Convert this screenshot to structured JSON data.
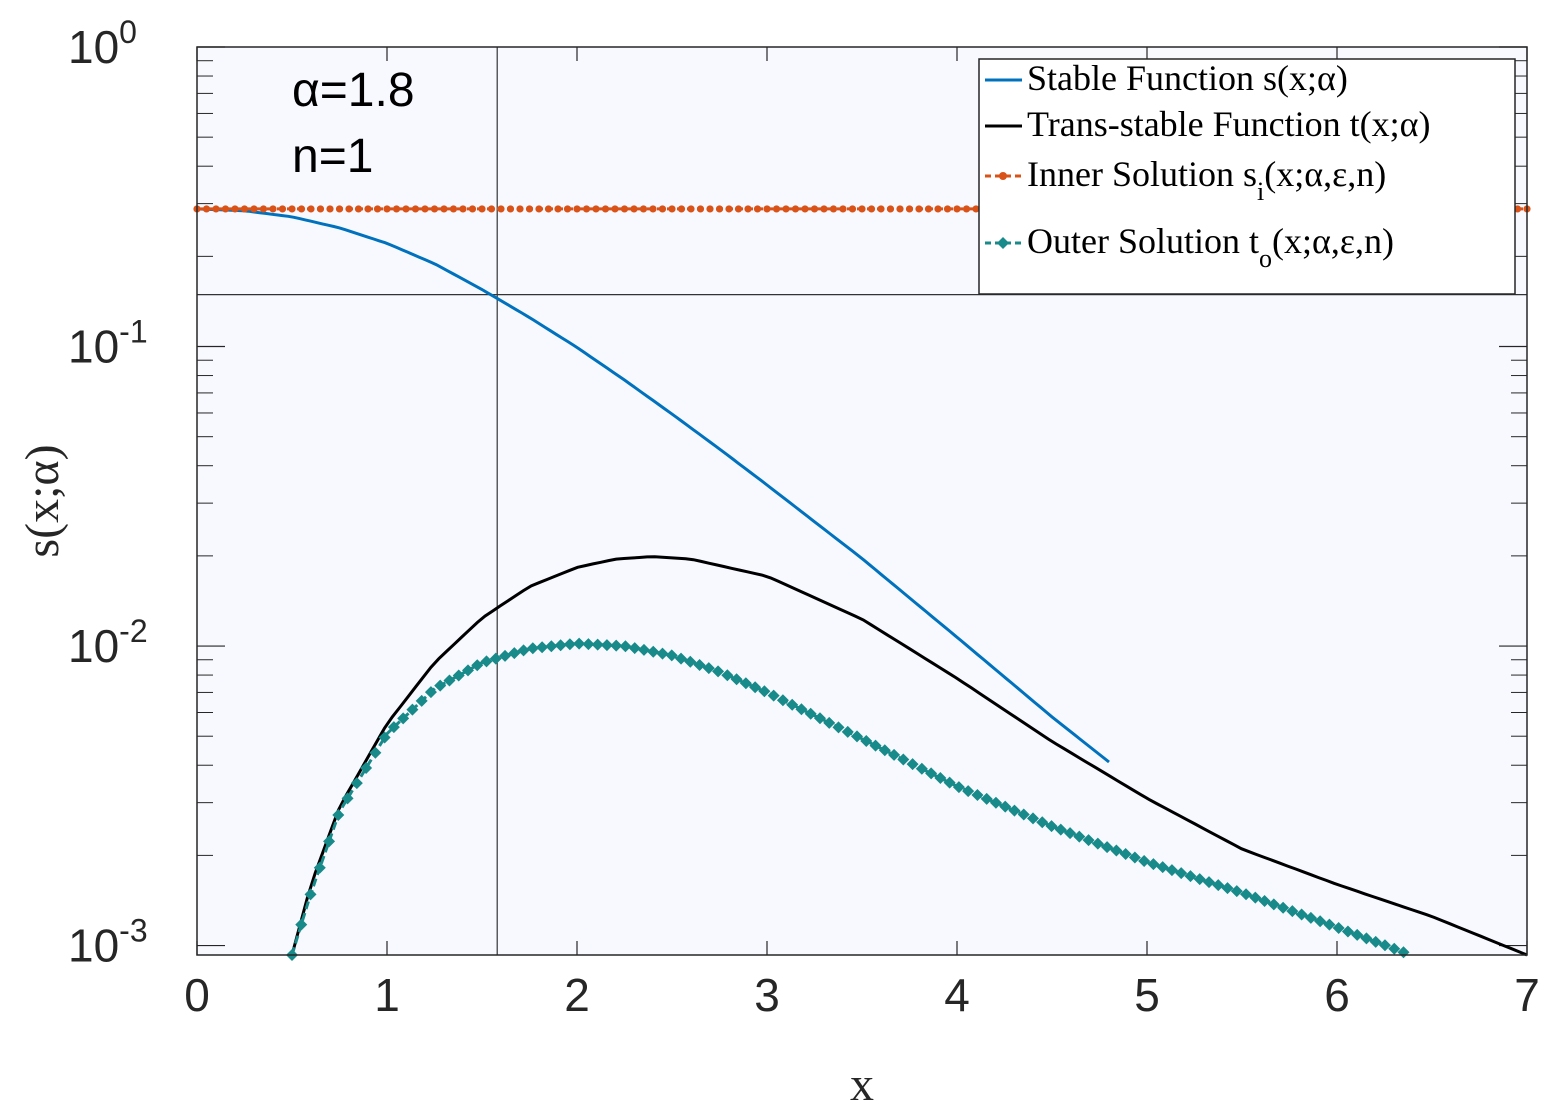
{
  "chart_data": {
    "type": "line",
    "xlabel": "x",
    "ylabel": "s(x;α)",
    "xlim": [
      0,
      7
    ],
    "ylim": [
      0.00093,
      1
    ],
    "yscale": "log",
    "grid": false,
    "legend_position": "top-right",
    "x_ticks": [
      "0",
      "1",
      "2",
      "3",
      "4",
      "5",
      "6",
      "7"
    ],
    "y_ticks": [
      {
        "value": 1,
        "base": "10",
        "exp": "0"
      },
      {
        "value": 0.1,
        "base": "10",
        "exp": "-1"
      },
      {
        "value": 0.01,
        "base": "10",
        "exp": "-2"
      },
      {
        "value": 0.001,
        "base": "10",
        "exp": "-3"
      }
    ],
    "annotations": [
      "α=1.8",
      "n=1"
    ],
    "crosshair": {
      "x": 1.58,
      "y": 0.149
    },
    "series": [
      {
        "name": "Stable Function s(x;α)",
        "label_main": "Stable Function s(x;α)",
        "label_sub": "",
        "label_tail": "",
        "color": "#0072bd",
        "style": "solid",
        "marker": "none",
        "x": [
          0,
          0.25,
          0.5,
          0.75,
          1.0,
          1.25,
          1.5,
          1.75,
          2.0,
          2.25,
          2.5,
          2.75,
          3.0,
          3.5,
          4.0,
          4.5,
          4.8
        ],
        "y": [
          0.288,
          0.284,
          0.271,
          0.249,
          0.221,
          0.189,
          0.155,
          0.125,
          0.0993,
          0.0773,
          0.0595,
          0.0455,
          0.0345,
          0.0196,
          0.0107,
          0.0058,
          0.0041
        ]
      },
      {
        "name": "Trans-stable Function t(x;α)",
        "label_main": "Trans-stable Function t(x;α)",
        "label_sub": "",
        "label_tail": "",
        "color": "#000000",
        "style": "solid",
        "marker": "none",
        "x": [
          0.5,
          0.6,
          0.75,
          1.0,
          1.25,
          1.5,
          1.75,
          2.0,
          2.2,
          2.4,
          2.6,
          3.0,
          3.5,
          4.0,
          4.5,
          5.0,
          5.5,
          6.0,
          6.5,
          7.0
        ],
        "y": [
          0.00093,
          0.0016,
          0.0029,
          0.0055,
          0.0088,
          0.0124,
          0.0158,
          0.0183,
          0.0195,
          0.0199,
          0.0195,
          0.0171,
          0.0123,
          0.0078,
          0.0048,
          0.0031,
          0.0021,
          0.0016,
          0.00125,
          0.00093
        ]
      },
      {
        "name": "Inner Solution s_i(x;α,ε,n)",
        "label_main": "Inner Solution s",
        "label_sub": "i",
        "label_tail": "(x;α,ε,n)",
        "color": "#d95319",
        "style": "dashed",
        "marker": "dot",
        "x": [
          0,
          7
        ],
        "y": [
          0.288,
          0.288
        ]
      },
      {
        "name": "Outer Solution t_o(x;α,ε,n)",
        "label_main": "Outer Solution t",
        "label_sub": "o",
        "label_tail": "(x;α,ε,n)",
        "color": "#188a8a",
        "style": "dashed",
        "marker": "diamond",
        "x": [
          0.5,
          0.6,
          0.75,
          1.0,
          1.25,
          1.5,
          1.75,
          2.0,
          2.25,
          2.5,
          2.75,
          3.0,
          3.5,
          4.0,
          4.5,
          5.0,
          5.5,
          6.0,
          6.35
        ],
        "y": [
          0.00093,
          0.0015,
          0.0028,
          0.0051,
          0.0072,
          0.0088,
          0.0098,
          0.0102,
          0.01,
          0.0093,
          0.0082,
          0.007,
          0.0049,
          0.0034,
          0.0025,
          0.0019,
          0.0015,
          0.00115,
          0.00095
        ]
      }
    ]
  }
}
